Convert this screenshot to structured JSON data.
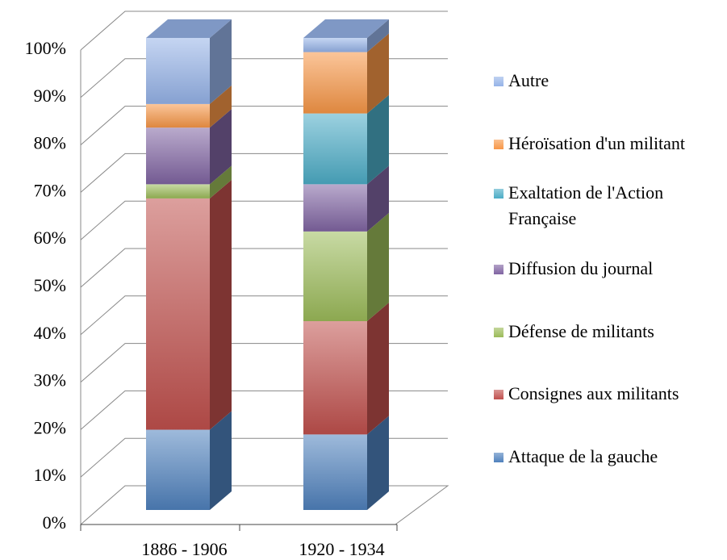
{
  "chart_data": {
    "type": "stacked-bar-3d",
    "categories": [
      "1886 - 1906",
      "1920 - 1934"
    ],
    "series": [
      {
        "name": "Attaque de la gauche",
        "color": "#4f81bd",
        "values": [
          17,
          16
        ]
      },
      {
        "name": "Consignes aux militants",
        "color": "#c0504d",
        "values": [
          49,
          24
        ]
      },
      {
        "name": "Défense de militants",
        "color": "#9bbb59",
        "values": [
          3,
          19
        ]
      },
      {
        "name": "Diffusion du journal",
        "color": "#8064a2",
        "values": [
          12,
          10
        ]
      },
      {
        "name": "Exaltation de l'Action Française",
        "color": "#4bacc6",
        "values": [
          0,
          15
        ]
      },
      {
        "name": "Héroïsation d'un militant",
        "color": "#f79646",
        "values": [
          5,
          13
        ]
      },
      {
        "name": "Autre",
        "color": "#95b3e8",
        "values": [
          14,
          3
        ]
      }
    ],
    "ylim": [
      0,
      100
    ],
    "yticks": [
      {
        "value": 0,
        "label": "0%"
      },
      {
        "value": 10,
        "label": "10%"
      },
      {
        "value": 20,
        "label": "20%"
      },
      {
        "value": 30,
        "label": "30%"
      },
      {
        "value": 40,
        "label": "40%"
      },
      {
        "value": 50,
        "label": "50%"
      },
      {
        "value": 60,
        "label": "60%"
      },
      {
        "value": 70,
        "label": "70%"
      },
      {
        "value": 80,
        "label": "80%"
      },
      {
        "value": 90,
        "label": "90%"
      },
      {
        "value": 100,
        "label": "100%"
      }
    ],
    "grid": true,
    "legend": "right"
  }
}
